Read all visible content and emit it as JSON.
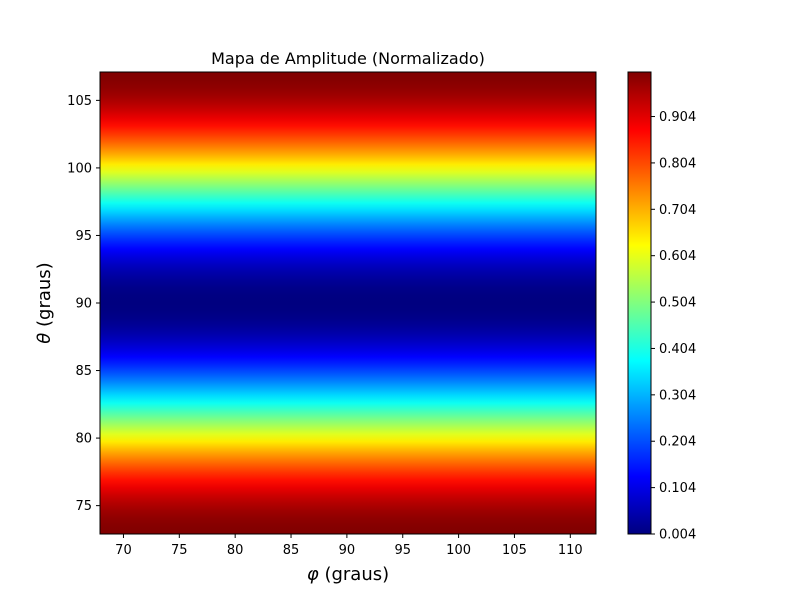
{
  "chart_data": {
    "type": "heatmap",
    "title": "Mapa de Amplitude (Normalizado)",
    "xlabel": "φ (graus)",
    "ylabel": "θ (graus)",
    "xlabel_symbol": "φ",
    "xlabel_text": " (graus)",
    "ylabel_symbol": "θ",
    "ylabel_text": " (graus)",
    "xlim": [
      67.9,
      112.3
    ],
    "ylim": [
      72.9,
      107.1
    ],
    "x_ticks": [
      70,
      75,
      80,
      85,
      90,
      95,
      100,
      105,
      110
    ],
    "y_ticks": [
      75,
      80,
      85,
      90,
      95,
      100,
      105
    ],
    "colormap": "jet",
    "value_range": [
      0.004,
      1.0
    ],
    "value_function": "amplitude varies only with theta: ~0.004 at theta=90, rising symmetrically to ~1.0 at theta=73 and theta=107; constant along phi",
    "colorbar": {
      "ticks": [
        0.004,
        0.104,
        0.204,
        0.304,
        0.404,
        0.504,
        0.604,
        0.704,
        0.804,
        0.904
      ],
      "tick_labels": [
        "0.004",
        "0.104",
        "0.204",
        "0.304",
        "0.404",
        "0.504",
        "0.604",
        "0.704",
        "0.804",
        "0.904"
      ]
    },
    "grid": false
  }
}
